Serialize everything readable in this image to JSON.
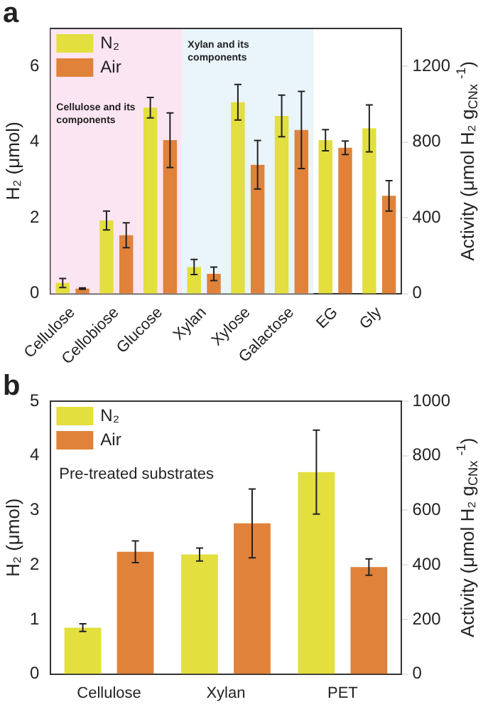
{
  "chart_data": [
    {
      "type": "bar",
      "title": "a",
      "categories": [
        "Cellulose",
        "Cellobiose",
        "Glucose",
        "Xylan",
        "Xylose",
        "Galactose",
        "EG",
        "Gly"
      ],
      "series": [
        {
          "name": "N₂",
          "color": "#e2df3f",
          "values": [
            0.28,
            1.93,
            4.91,
            0.7,
            5.05,
            4.69,
            4.05,
            4.36
          ],
          "errors": [
            0.12,
            0.25,
            0.27,
            0.2,
            0.47,
            0.55,
            0.28,
            0.62
          ]
        },
        {
          "name": "Air",
          "color": "#e0823a",
          "values": [
            0.13,
            1.54,
            4.05,
            0.52,
            3.4,
            4.32,
            3.85,
            2.58
          ],
          "errors": [
            0.02,
            0.33,
            0.72,
            0.18,
            0.64,
            1.02,
            0.18,
            0.4
          ]
        }
      ],
      "ylabel": "H₂ (μmol)",
      "y2label": "Activity (μmol H₂ g$_{CNx}$ $^{-1}$)",
      "ylim": [
        0,
        7
      ],
      "yticks": [
        0,
        2,
        4,
        6
      ],
      "y2lim": [
        0,
        1400
      ],
      "y2ticks": [
        0,
        400,
        800,
        1200
      ],
      "bands": [
        {
          "axis": "x",
          "from": "Cellulose",
          "to": "Glucose",
          "label": "Cellulose and its components",
          "color": "#fbe5f2"
        },
        {
          "axis": "x",
          "from": "Xylan",
          "to": "Galactose",
          "label": "Xylan and its components",
          "color": "#e9f4fb"
        }
      ],
      "legend": "top left",
      "grid": false
    },
    {
      "type": "bar",
      "title": "b",
      "categories": [
        "Cellulose",
        "Xylan",
        "PET"
      ],
      "series": [
        {
          "name": "N₂",
          "color": "#e2df3f",
          "values": [
            0.85,
            2.19,
            3.7
          ],
          "errors": [
            0.07,
            0.12,
            0.77
          ]
        },
        {
          "name": "Air",
          "color": "#e0823a",
          "values": [
            2.24,
            2.76,
            1.96
          ],
          "errors": [
            0.2,
            0.63,
            0.15
          ]
        }
      ],
      "ylabel": "H₂ (μmol)",
      "y2label": "Activity (μmol H₂ g$_{CNx}$ $^{-1}$)",
      "ylim": [
        0,
        5
      ],
      "yticks": [
        0,
        1,
        2,
        3,
        4,
        5
      ],
      "y2lim": [
        0,
        1000
      ],
      "y2ticks": [
        0,
        200,
        400,
        600,
        800,
        1000
      ],
      "annotations": [
        "Pre-treated substrates"
      ],
      "legend": "top left",
      "grid": false
    }
  ]
}
